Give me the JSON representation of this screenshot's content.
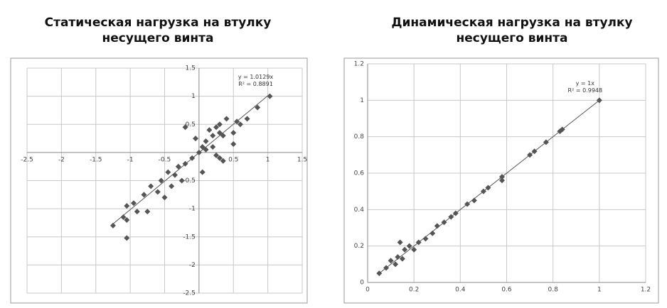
{
  "chart_data": [
    {
      "type": "scatter",
      "title": [
        "Статическая нагрузка на втулку",
        "несущего винта"
      ],
      "annotations": [
        "y = 1.0129x",
        "R² = 0.8891"
      ],
      "xlim": [
        -2.5,
        1.5
      ],
      "ylim": [
        -2.5,
        1.5
      ],
      "xticks": [
        -2.5,
        -2,
        -1.5,
        -1,
        -0.5,
        0.5,
        1,
        1.5
      ],
      "yticks": [
        -2.5,
        -2,
        -1.5,
        -1,
        -0.5,
        0.5,
        1,
        1.5
      ],
      "grid": true,
      "series": [
        {
          "marker": "diamond",
          "color": "#555555",
          "x": [
            1.03,
            0.85,
            0.7,
            0.6,
            0.55,
            0.4,
            0.5,
            0.3,
            0.35,
            0.3,
            0.25,
            0.2,
            0.15,
            0.1,
            0.2,
            0.05,
            0.1,
            0,
            -0.05,
            0.25,
            0.3,
            0.35,
            -0.1,
            -0.2,
            -0.3,
            -0.35,
            -0.45,
            -0.25,
            -0.4,
            -0.55,
            -0.6,
            -0.5,
            -0.7,
            -0.8,
            -0.9,
            -0.75,
            -0.95,
            -1.05,
            -1.1,
            -1.05,
            -1.25,
            -1.05,
            -0.2,
            0.05,
            0.5
          ],
          "values": [
            1.0,
            0.8,
            0.6,
            0.5,
            0.55,
            0.6,
            0.35,
            0.35,
            0.3,
            0.5,
            0.45,
            0.3,
            0.4,
            0.2,
            0.1,
            0.1,
            0.05,
            0,
            0.25,
            -0.05,
            -0.1,
            -0.15,
            -0.1,
            -0.2,
            -0.25,
            -0.4,
            -0.35,
            -0.5,
            -0.6,
            -0.5,
            -0.7,
            -0.8,
            -0.6,
            -0.75,
            -1.05,
            -1.05,
            -0.9,
            -0.95,
            -1.15,
            -1.2,
            -1.3,
            -1.52,
            0.45,
            -0.35,
            0.15
          ]
        },
        {
          "marker": "line",
          "color": "#555555",
          "x": [
            -1.25,
            1.03
          ],
          "values": [
            -1.27,
            1.04
          ]
        }
      ]
    },
    {
      "type": "scatter",
      "title": [
        "Динамическая нагрузка на втулку",
        "несущего винта"
      ],
      "annotations": [
        "y = 1x",
        "R² = 0.9948"
      ],
      "xlim": [
        0,
        1.2
      ],
      "ylim": [
        0,
        1.2
      ],
      "xticks": [
        0,
        0.2,
        0.4,
        0.6,
        0.8,
        1,
        1.2
      ],
      "yticks": [
        0,
        0.2,
        0.4,
        0.6,
        0.8,
        1,
        1.2
      ],
      "grid": true,
      "series": [
        {
          "marker": "diamond",
          "color": "#555555",
          "x": [
            0.05,
            0.08,
            0.1,
            0.12,
            0.13,
            0.15,
            0.14,
            0.16,
            0.18,
            0.2,
            0.22,
            0.25,
            0.28,
            0.3,
            0.33,
            0.36,
            0.38,
            0.43,
            0.46,
            0.5,
            0.52,
            0.58,
            0.58,
            0.7,
            0.72,
            0.77,
            0.83,
            0.84,
            1
          ],
          "values": [
            0.05,
            0.08,
            0.12,
            0.1,
            0.14,
            0.13,
            0.22,
            0.18,
            0.2,
            0.18,
            0.22,
            0.24,
            0.27,
            0.31,
            0.33,
            0.36,
            0.38,
            0.43,
            0.45,
            0.5,
            0.52,
            0.58,
            0.56,
            0.7,
            0.72,
            0.77,
            0.83,
            0.84,
            1
          ]
        },
        {
          "marker": "line",
          "color": "#555555",
          "x": [
            0.05,
            1
          ],
          "values": [
            0.05,
            1
          ]
        }
      ]
    }
  ]
}
